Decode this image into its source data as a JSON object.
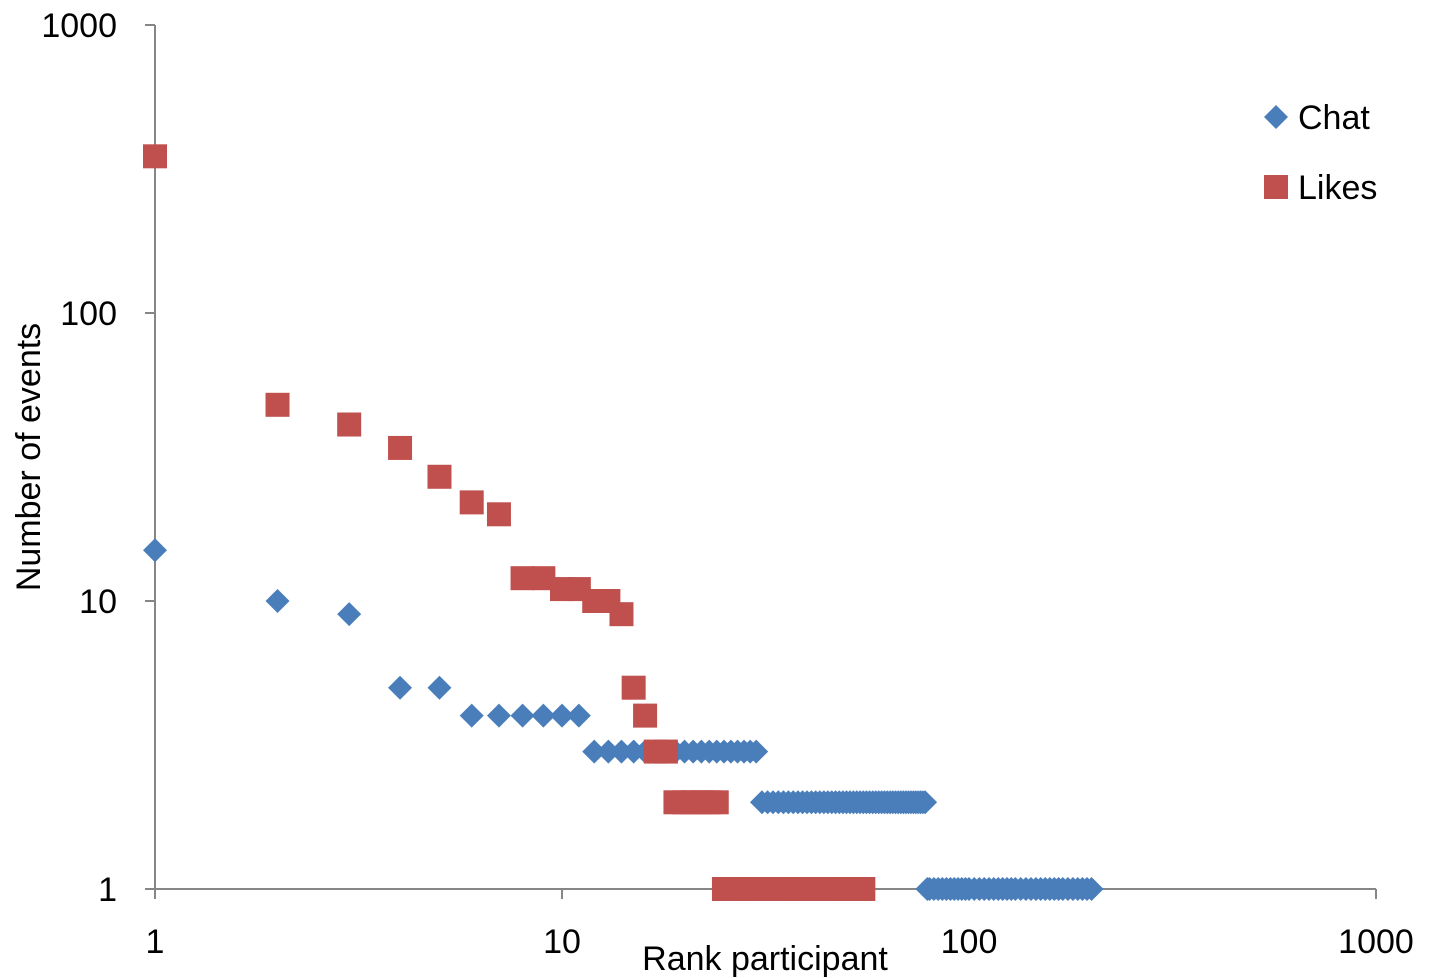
{
  "chart_data": {
    "type": "scatter",
    "title": "",
    "xlabel": "Rank participant",
    "ylabel": "Number of events",
    "x_scale": "log",
    "y_scale": "log",
    "xlim": [
      1,
      1000
    ],
    "ylim": [
      1,
      1000
    ],
    "x_ticks": [
      "1",
      "10",
      "100",
      "1000"
    ],
    "y_ticks": [
      "1",
      "10",
      "100",
      "1000"
    ],
    "grid": false,
    "legend_position": "top-right",
    "series": [
      {
        "name": "Chat",
        "color": "#4a7ebb",
        "marker": "diamond",
        "points": [
          [
            1,
            15
          ],
          [
            2,
            10
          ],
          [
            3,
            9
          ],
          [
            4,
            5
          ],
          [
            5,
            5
          ],
          [
            6,
            4
          ],
          [
            7,
            4
          ],
          [
            8,
            4
          ],
          [
            9,
            4
          ],
          [
            10,
            4
          ],
          [
            11,
            4
          ],
          [
            12,
            3
          ],
          [
            13,
            3
          ],
          [
            14,
            3
          ],
          [
            15,
            3
          ],
          [
            16,
            3
          ],
          [
            17,
            3
          ],
          [
            18,
            3
          ],
          [
            19,
            3
          ],
          [
            20,
            3
          ],
          [
            21,
            3
          ],
          [
            22,
            3
          ],
          [
            23,
            3
          ],
          [
            24,
            3
          ],
          [
            25,
            3
          ],
          [
            26,
            3
          ],
          [
            27,
            3
          ],
          [
            28,
            3
          ],
          [
            29,
            3
          ],
          [
            30,
            3
          ],
          [
            31,
            2
          ],
          [
            32,
            2
          ],
          [
            33,
            2
          ],
          [
            34,
            2
          ],
          [
            35,
            2
          ],
          [
            36,
            2
          ],
          [
            37,
            2
          ],
          [
            38,
            2
          ],
          [
            39,
            2
          ],
          [
            40,
            2
          ],
          [
            41,
            2
          ],
          [
            42,
            2
          ],
          [
            43,
            2
          ],
          [
            44,
            2
          ],
          [
            45,
            2
          ],
          [
            46,
            2
          ],
          [
            47,
            2
          ],
          [
            48,
            2
          ],
          [
            49,
            2
          ],
          [
            50,
            2
          ],
          [
            51,
            2
          ],
          [
            52,
            2
          ],
          [
            53,
            2
          ],
          [
            54,
            2
          ],
          [
            55,
            2
          ],
          [
            56,
            2
          ],
          [
            57,
            2
          ],
          [
            58,
            2
          ],
          [
            59,
            2
          ],
          [
            60,
            2
          ],
          [
            61,
            2
          ],
          [
            62,
            2
          ],
          [
            63,
            2
          ],
          [
            64,
            2
          ],
          [
            65,
            2
          ],
          [
            66,
            2
          ],
          [
            67,
            2
          ],
          [
            68,
            2
          ],
          [
            69,
            2
          ],
          [
            70,
            2
          ],
          [
            71,
            2
          ],
          [
            72,
            2
          ],
          [
            73,
            2
          ],
          [
            74,
            2
          ],
          [
            75,
            2
          ],
          [
            76,
            2
          ],
          [
            77,
            2
          ],
          [
            78,
            2
          ],
          [
            79,
            1
          ],
          [
            80,
            1
          ],
          [
            82,
            1
          ],
          [
            84,
            1
          ],
          [
            86,
            1
          ],
          [
            88,
            1
          ],
          [
            90,
            1
          ],
          [
            92,
            1
          ],
          [
            94,
            1
          ],
          [
            96,
            1
          ],
          [
            98,
            1
          ],
          [
            100,
            1
          ],
          [
            103,
            1
          ],
          [
            106,
            1
          ],
          [
            109,
            1
          ],
          [
            112,
            1
          ],
          [
            115,
            1
          ],
          [
            118,
            1
          ],
          [
            121,
            1
          ],
          [
            124,
            1
          ],
          [
            127,
            1
          ],
          [
            130,
            1
          ],
          [
            134,
            1
          ],
          [
            138,
            1
          ],
          [
            142,
            1
          ],
          [
            146,
            1
          ],
          [
            150,
            1
          ],
          [
            154,
            1
          ],
          [
            158,
            1
          ],
          [
            162,
            1
          ],
          [
            166,
            1
          ],
          [
            170,
            1
          ],
          [
            175,
            1
          ],
          [
            180,
            1
          ],
          [
            185,
            1
          ],
          [
            190,
            1
          ],
          [
            195,
            1
          ],
          [
            200,
            1
          ]
        ]
      },
      {
        "name": "Likes",
        "color": "#c0504d",
        "marker": "square",
        "points": [
          [
            1,
            350
          ],
          [
            2,
            48
          ],
          [
            3,
            41
          ],
          [
            4,
            34
          ],
          [
            5,
            27
          ],
          [
            6,
            22
          ],
          [
            7,
            20
          ],
          [
            8,
            12
          ],
          [
            9,
            12
          ],
          [
            10,
            11
          ],
          [
            11,
            11
          ],
          [
            12,
            10
          ],
          [
            13,
            10
          ],
          [
            14,
            9
          ],
          [
            15,
            5
          ],
          [
            16,
            4
          ],
          [
            17,
            3
          ],
          [
            18,
            3
          ],
          [
            19,
            2
          ],
          [
            20,
            2
          ],
          [
            21,
            2
          ],
          [
            22,
            2
          ],
          [
            23,
            2
          ],
          [
            24,
            2
          ],
          [
            25,
            1
          ],
          [
            26,
            1
          ],
          [
            27,
            1
          ],
          [
            28,
            1
          ],
          [
            29,
            1
          ],
          [
            30,
            1
          ],
          [
            31,
            1
          ],
          [
            32,
            1
          ],
          [
            33,
            1
          ],
          [
            34,
            1
          ],
          [
            35,
            1
          ],
          [
            36,
            1
          ],
          [
            37,
            1
          ],
          [
            38,
            1
          ],
          [
            39,
            1
          ],
          [
            40,
            1
          ],
          [
            41,
            1
          ],
          [
            42,
            1
          ],
          [
            43,
            1
          ],
          [
            44,
            1
          ],
          [
            45,
            1
          ],
          [
            46,
            1
          ],
          [
            47,
            1
          ],
          [
            48,
            1
          ],
          [
            49,
            1
          ],
          [
            50,
            1
          ],
          [
            51,
            1
          ],
          [
            52,
            1
          ],
          [
            53,
            1
          ],
          [
            54,
            1
          ],
          [
            55,
            1
          ]
        ]
      }
    ]
  }
}
